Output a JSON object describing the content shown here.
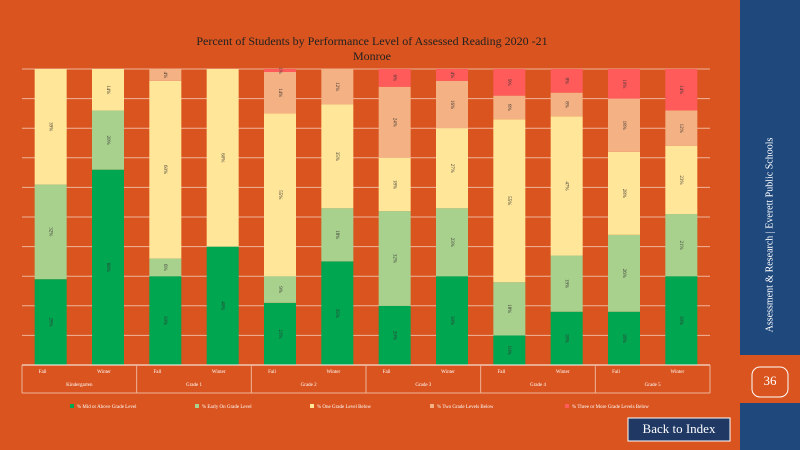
{
  "chart_data": {
    "type": "stacked_bar",
    "title": "Percent of Students by Performance Level of Assessed Reading 2020 -21",
    "subtitle": "Monroe",
    "categories": [
      "Fall",
      "Winter",
      "Fall",
      "Winter",
      "Fall",
      "Winter",
      "Fall",
      "Winter",
      "Fall",
      "Winter",
      "Fall",
      "Winter"
    ],
    "groups": [
      "Kindergarten",
      "Grade 1",
      "Grade 2",
      "Grade 3",
      "Grade 4",
      "Grade 5"
    ],
    "ylim": [
      0,
      100
    ],
    "yticks": [
      0,
      10,
      20,
      30,
      40,
      50,
      60,
      70,
      80,
      90,
      100
    ],
    "grid": true,
    "series": [
      {
        "name": "% Mid or Above Grade Level",
        "color": "#00a650",
        "values": [
          29,
          66,
          30,
          40,
          21,
          35,
          20,
          30,
          10,
          18,
          18,
          30
        ],
        "value_labels": [
          "29%",
          "66%",
          "30%",
          "40%",
          "21%",
          "35%",
          "20%",
          "30%",
          "10%",
          "18%",
          "18%",
          "30%"
        ]
      },
      {
        "name": "% Early On Grade Level",
        "color": "#a9d18e",
        "values": [
          32,
          20,
          6,
          0,
          9,
          18,
          32,
          23,
          18,
          19,
          26,
          21
        ],
        "value_labels": [
          "32%",
          "20%",
          "6%",
          null,
          "9%",
          "18%",
          "32%",
          "23%",
          "18%",
          "19%",
          "26%",
          "21%"
        ]
      },
      {
        "name": "% One Grade Level Below",
        "color": "#ffe699",
        "values": [
          39,
          14,
          60,
          60,
          55,
          35,
          18,
          27,
          55,
          47,
          28,
          23
        ],
        "value_labels": [
          "39%",
          "14%",
          "60%",
          "60%",
          "55%",
          "35%",
          "18%",
          "27%",
          "55%",
          "47%",
          "28%",
          "23%"
        ]
      },
      {
        "name": "% Two Grade Levels Below",
        "color": "#f4b183",
        "values": [
          0,
          0,
          4,
          0,
          14,
          12,
          24,
          16,
          8,
          8,
          18,
          12
        ],
        "value_labels": [
          null,
          null,
          "4%",
          null,
          "14%",
          "12%",
          "24%",
          "16%",
          "8%",
          "8%",
          "18%",
          "12%"
        ]
      },
      {
        "name": "% Three or More Grade Levels Below",
        "color": "#ff5b5b",
        "values": [
          0,
          0,
          0,
          0,
          1,
          0,
          6,
          4,
          9,
          8,
          10,
          14
        ],
        "value_labels": [
          null,
          null,
          null,
          null,
          "1%",
          null,
          "6%",
          "4%",
          "9%",
          "8%",
          "10%",
          "14%"
        ]
      }
    ]
  },
  "sidebar": {
    "text": "Assessment & Research | Everett Public Schools",
    "page_number": "36"
  },
  "button": "Back to Index"
}
